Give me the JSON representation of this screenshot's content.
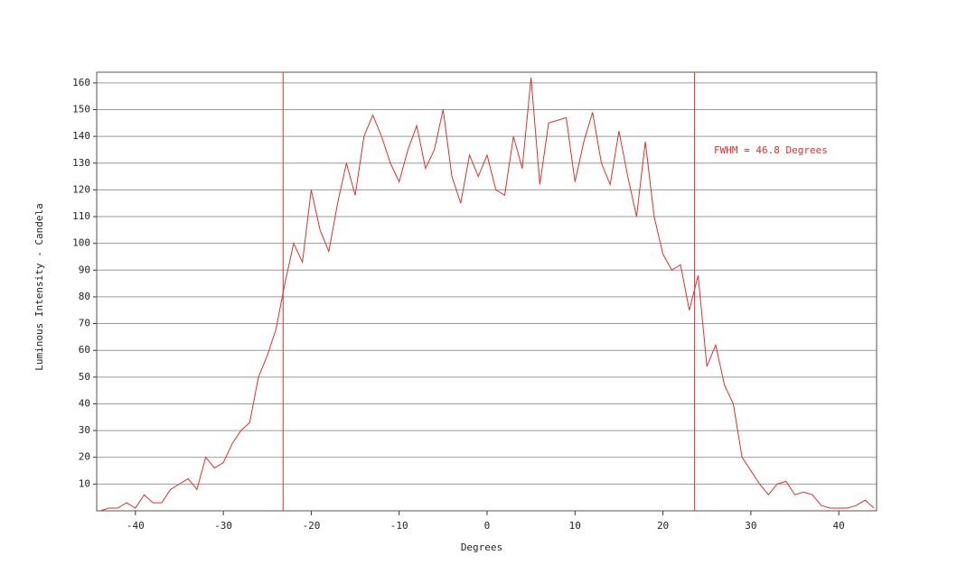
{
  "chart_data": {
    "type": "line",
    "x_label": "Degrees",
    "y_label": "Luminous Intensity - Candela",
    "annotation": "FWHM = 46.8 Degrees",
    "vlines": [
      -23.2,
      23.6
    ],
    "x": [
      -44,
      -43,
      -42,
      -41,
      -40,
      -39,
      -38,
      -37,
      -36,
      -35,
      -34,
      -33,
      -32,
      -31,
      -30,
      -29,
      -28,
      -27,
      -26,
      -25,
      -24,
      -23,
      -22,
      -21,
      -20,
      -19,
      -18,
      -17,
      -16,
      -15,
      -14,
      -13,
      -12,
      -11,
      -10,
      -9,
      -8,
      -7,
      -6,
      -5,
      -4,
      -3,
      -2,
      -1,
      0,
      1,
      2,
      3,
      4,
      5,
      6,
      7,
      8,
      9,
      10,
      11,
      12,
      13,
      14,
      15,
      16,
      17,
      18,
      19,
      20,
      21,
      22,
      23,
      24,
      25,
      26,
      27,
      28,
      29,
      30,
      31,
      32,
      33,
      34,
      35,
      36,
      37,
      38,
      39,
      40,
      41,
      42,
      43,
      44
    ],
    "series": [
      {
        "color": "#e03030",
        "values": [
          0,
          1,
          1,
          3,
          1,
          6,
          3,
          3,
          8,
          10,
          12,
          8,
          20,
          16,
          18,
          25,
          30,
          33,
          50,
          58,
          68,
          85,
          100,
          93,
          120,
          105,
          97,
          115,
          130,
          118,
          140,
          148,
          140,
          130,
          123,
          135,
          144,
          128,
          135,
          150,
          125,
          115,
          133,
          125,
          133,
          120,
          118,
          140,
          128,
          162,
          122,
          145,
          146,
          147,
          123,
          138,
          149,
          130,
          122,
          142,
          125,
          110,
          138,
          110,
          96,
          90,
          92,
          75,
          88,
          54,
          62,
          47,
          40,
          20,
          15,
          10,
          6,
          10,
          11,
          6,
          7,
          6,
          2,
          1,
          1,
          1,
          2,
          4,
          1
        ]
      }
    ],
    "xlim": [
      -44.4,
      44.3
    ],
    "ylim": [
      0,
      164
    ],
    "xticks": [
      -40,
      -30,
      -20,
      -10,
      0,
      10,
      20,
      30,
      40
    ],
    "yticks": [
      10,
      20,
      30,
      40,
      50,
      60,
      70,
      80,
      90,
      100,
      110,
      120,
      130,
      140,
      150,
      160
    ],
    "grid": true
  }
}
